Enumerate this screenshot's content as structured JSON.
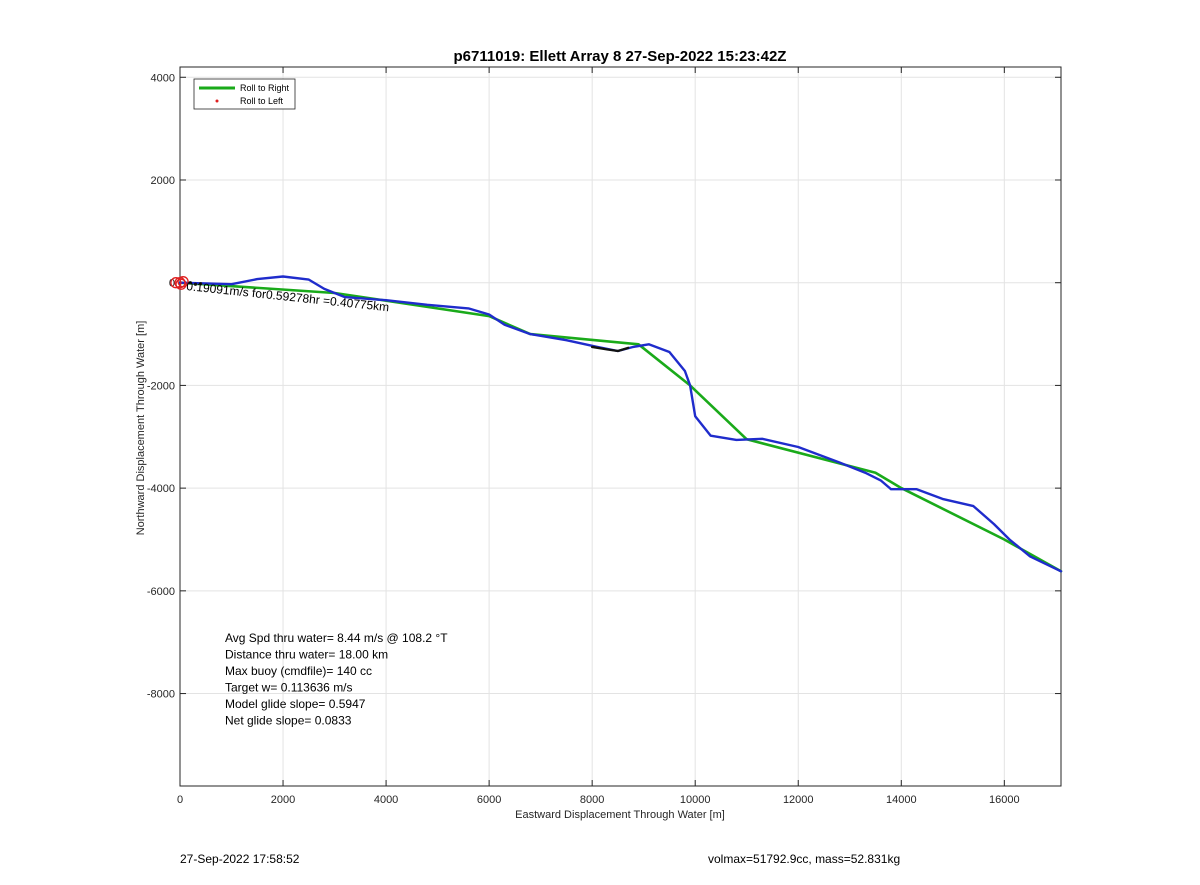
{
  "chart_data": {
    "type": "line",
    "title": "p6711019: Ellett Array 8 27-Sep-2022 15:23:42Z",
    "xlabel": "Eastward Displacement Through Water [m]",
    "ylabel": "Northward Displacement Through Water [m]",
    "xlim": [
      0,
      17100
    ],
    "ylim": [
      -9800,
      4200
    ],
    "xticks": [
      0,
      2000,
      4000,
      6000,
      8000,
      10000,
      12000,
      14000,
      16000
    ],
    "yticks": [
      4000,
      2000,
      0,
      -2000,
      -4000,
      -6000,
      -8000
    ],
    "grid": true,
    "legend": {
      "placement": "top-left",
      "entries": [
        "Roll to Right",
        "Roll to Left"
      ]
    },
    "series": [
      {
        "name": "Roll to Right",
        "color": "#1aaa1a",
        "x": [
          0,
          3000,
          6000,
          6800,
          8900,
          9900,
          11000,
          13500,
          14000,
          16000,
          17100
        ],
        "y": [
          0,
          -200,
          -650,
          -1000,
          -1200,
          -2000,
          -3050,
          -3700,
          -4000,
          -5000,
          -5620
        ]
      },
      {
        "name": "Roll to Left",
        "color": "#e02020",
        "x": [],
        "y": []
      },
      {
        "name": "",
        "color": "#1f2ccc",
        "x": [
          0,
          1000,
          1500,
          2000,
          2500,
          2800,
          3200,
          4000,
          4800,
          5600,
          6000,
          6300,
          6800,
          7500,
          8100,
          8500,
          8800,
          9100,
          9500,
          9800,
          9900,
          10000,
          10300,
          10800,
          11300,
          12000,
          12800,
          13300,
          13600,
          13800,
          14300,
          14800,
          15400,
          15800,
          16100,
          16500,
          17100
        ],
        "y": [
          0,
          -30,
          70,
          120,
          60,
          -120,
          -280,
          -340,
          -430,
          -500,
          -620,
          -820,
          -1000,
          -1120,
          -1250,
          -1330,
          -1250,
          -1200,
          -1350,
          -1720,
          -2000,
          -2600,
          -2980,
          -3060,
          -3040,
          -3200,
          -3500,
          -3700,
          -3850,
          -4020,
          -4020,
          -4210,
          -4350,
          -4700,
          -5000,
          -5330,
          -5620
        ]
      },
      {
        "name": "",
        "color": "#111111",
        "x": [
          8000,
          8300,
          8500,
          8700
        ],
        "y": [
          -1250,
          -1300,
          -1330,
          -1270
        ]
      }
    ],
    "annotations": {
      "current": "0.19091m/s for0.59278hr =0.40775km",
      "stats": [
        "Avg Spd thru water=  8.44 m/s @ 108.2 °T",
        "Distance thru water= 18.00 km",
        "Max buoy (cmdfile)= 140 cc",
        "Target w= 0.113636 m/s",
        "Model glide slope= 0.5947",
        "Net glide slope= 0.0833"
      ]
    }
  },
  "footer": {
    "left": "27-Sep-2022 17:58:52",
    "right": "volmax=51792.9cc, mass=52.831kg"
  }
}
